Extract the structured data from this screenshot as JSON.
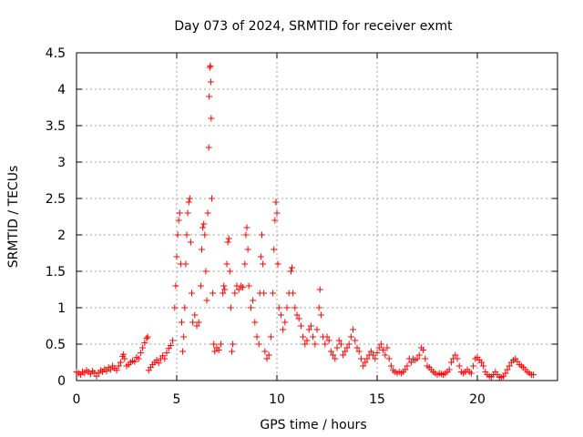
{
  "chart_data": {
    "type": "scatter",
    "title": "Day 073 of 2024, SRMTID for receiver exmt",
    "xlabel": "GPS time / hours",
    "ylabel": "SRMTID / TECUs",
    "xlim": [
      0,
      24
    ],
    "ylim": [
      0,
      4.5
    ],
    "xticks": [
      0,
      5,
      10,
      15,
      20
    ],
    "xtick_labels": [
      "0",
      "5",
      "10",
      "15",
      "20"
    ],
    "yticks": [
      0,
      0.5,
      1,
      1.5,
      2,
      2.5,
      3,
      3.5,
      4,
      4.5
    ],
    "ytick_labels": [
      "0",
      "0.5",
      "1",
      "1.5",
      "2",
      "2.5",
      "3",
      "3.5",
      "4",
      "4.5"
    ],
    "grid": true,
    "marker": "+",
    "color": "#ff0000",
    "series": [
      {
        "name": "SRMTID",
        "points": [
          [
            0.0,
            0.12
          ],
          [
            0.1,
            0.1
          ],
          [
            0.2,
            0.08
          ],
          [
            0.3,
            0.12
          ],
          [
            0.4,
            0.1
          ],
          [
            0.5,
            0.14
          ],
          [
            0.6,
            0.12
          ],
          [
            0.7,
            0.09
          ],
          [
            0.8,
            0.13
          ],
          [
            0.9,
            0.11
          ],
          [
            1.0,
            0.06
          ],
          [
            1.1,
            0.1
          ],
          [
            1.2,
            0.14
          ],
          [
            1.3,
            0.12
          ],
          [
            1.4,
            0.16
          ],
          [
            1.5,
            0.13
          ],
          [
            1.6,
            0.18
          ],
          [
            1.7,
            0.15
          ],
          [
            1.8,
            0.2
          ],
          [
            1.9,
            0.17
          ],
          [
            2.0,
            0.14
          ],
          [
            2.1,
            0.2
          ],
          [
            2.2,
            0.25
          ],
          [
            2.3,
            0.33
          ],
          [
            2.35,
            0.36
          ],
          [
            2.4,
            0.3
          ],
          [
            2.5,
            0.2
          ],
          [
            2.6,
            0.22
          ],
          [
            2.7,
            0.25
          ],
          [
            2.8,
            0.27
          ],
          [
            2.9,
            0.26
          ],
          [
            3.0,
            0.32
          ],
          [
            3.1,
            0.3
          ],
          [
            3.2,
            0.38
          ],
          [
            3.3,
            0.45
          ],
          [
            3.4,
            0.52
          ],
          [
            3.5,
            0.58
          ],
          [
            3.55,
            0.6
          ],
          [
            3.6,
            0.14
          ],
          [
            3.7,
            0.18
          ],
          [
            3.8,
            0.22
          ],
          [
            3.9,
            0.25
          ],
          [
            4.0,
            0.28
          ],
          [
            4.1,
            0.24
          ],
          [
            4.2,
            0.3
          ],
          [
            4.3,
            0.34
          ],
          [
            4.4,
            0.3
          ],
          [
            4.5,
            0.38
          ],
          [
            4.6,
            0.44
          ],
          [
            4.7,
            0.48
          ],
          [
            4.8,
            0.55
          ],
          [
            4.9,
            1.0
          ],
          [
            4.95,
            1.3
          ],
          [
            5.0,
            1.7
          ],
          [
            5.05,
            2.0
          ],
          [
            5.1,
            2.2
          ],
          [
            5.15,
            2.3
          ],
          [
            5.2,
            1.6
          ],
          [
            5.25,
            0.8
          ],
          [
            5.3,
            0.4
          ],
          [
            5.35,
            0.6
          ],
          [
            5.4,
            1.0
          ],
          [
            5.45,
            1.6
          ],
          [
            5.5,
            2.0
          ],
          [
            5.55,
            2.3
          ],
          [
            5.6,
            2.45
          ],
          [
            5.65,
            2.5
          ],
          [
            5.7,
            1.9
          ],
          [
            5.75,
            1.2
          ],
          [
            5.8,
            0.8
          ],
          [
            5.9,
            0.9
          ],
          [
            6.0,
            0.75
          ],
          [
            6.1,
            0.8
          ],
          [
            6.2,
            1.3
          ],
          [
            6.25,
            1.8
          ],
          [
            6.3,
            2.1
          ],
          [
            6.35,
            2.15
          ],
          [
            6.4,
            2.0
          ],
          [
            6.45,
            1.5
          ],
          [
            6.5,
            1.1
          ],
          [
            6.55,
            2.3
          ],
          [
            6.6,
            3.2
          ],
          [
            6.62,
            3.9
          ],
          [
            6.65,
            4.3
          ],
          [
            6.68,
            4.32
          ],
          [
            6.7,
            4.1
          ],
          [
            6.72,
            3.6
          ],
          [
            6.75,
            2.5
          ],
          [
            6.8,
            1.2
          ],
          [
            6.85,
            0.5
          ],
          [
            6.9,
            0.4
          ],
          [
            7.0,
            0.45
          ],
          [
            7.1,
            0.42
          ],
          [
            7.2,
            0.5
          ],
          [
            7.3,
            1.2
          ],
          [
            7.35,
            1.3
          ],
          [
            7.4,
            1.25
          ],
          [
            7.5,
            1.6
          ],
          [
            7.55,
            1.9
          ],
          [
            7.6,
            1.95
          ],
          [
            7.65,
            1.5
          ],
          [
            7.7,
            1.0
          ],
          [
            7.75,
            0.4
          ],
          [
            7.8,
            0.5
          ],
          [
            7.9,
            1.2
          ],
          [
            8.0,
            1.3
          ],
          [
            8.1,
            1.25
          ],
          [
            8.2,
            1.3
          ],
          [
            8.3,
            1.28
          ],
          [
            8.4,
            1.6
          ],
          [
            8.45,
            2.0
          ],
          [
            8.5,
            2.1
          ],
          [
            8.55,
            1.8
          ],
          [
            8.6,
            1.3
          ],
          [
            8.7,
            1.0
          ],
          [
            8.8,
            1.1
          ],
          [
            8.9,
            0.8
          ],
          [
            9.0,
            0.6
          ],
          [
            9.1,
            0.5
          ],
          [
            9.15,
            1.2
          ],
          [
            9.2,
            1.7
          ],
          [
            9.25,
            2.0
          ],
          [
            9.3,
            1.6
          ],
          [
            9.35,
            1.2
          ],
          [
            9.4,
            0.4
          ],
          [
            9.5,
            0.3
          ],
          [
            9.6,
            0.35
          ],
          [
            9.7,
            0.6
          ],
          [
            9.8,
            1.2
          ],
          [
            9.85,
            1.8
          ],
          [
            9.9,
            2.2
          ],
          [
            9.95,
            2.45
          ],
          [
            10.0,
            2.3
          ],
          [
            10.05,
            1.6
          ],
          [
            10.1,
            1.0
          ],
          [
            10.2,
            0.9
          ],
          [
            10.3,
            0.7
          ],
          [
            10.4,
            0.8
          ],
          [
            10.5,
            1.0
          ],
          [
            10.6,
            1.2
          ],
          [
            10.7,
            1.5
          ],
          [
            10.75,
            1.55
          ],
          [
            10.8,
            1.2
          ],
          [
            10.9,
            1.0
          ],
          [
            11.0,
            0.9
          ],
          [
            11.1,
            0.85
          ],
          [
            11.2,
            0.75
          ],
          [
            11.3,
            0.6
          ],
          [
            11.4,
            0.5
          ],
          [
            11.5,
            0.55
          ],
          [
            11.6,
            0.7
          ],
          [
            11.7,
            0.75
          ],
          [
            11.8,
            0.6
          ],
          [
            11.9,
            0.5
          ],
          [
            12.0,
            0.7
          ],
          [
            12.1,
            1.0
          ],
          [
            12.15,
            1.25
          ],
          [
            12.2,
            0.9
          ],
          [
            12.3,
            0.6
          ],
          [
            12.4,
            0.5
          ],
          [
            12.5,
            0.6
          ],
          [
            12.6,
            0.55
          ],
          [
            12.7,
            0.4
          ],
          [
            12.8,
            0.35
          ],
          [
            12.9,
            0.3
          ],
          [
            13.0,
            0.45
          ],
          [
            13.1,
            0.55
          ],
          [
            13.2,
            0.5
          ],
          [
            13.3,
            0.35
          ],
          [
            13.4,
            0.4
          ],
          [
            13.5,
            0.45
          ],
          [
            13.6,
            0.5
          ],
          [
            13.7,
            0.6
          ],
          [
            13.8,
            0.7
          ],
          [
            13.9,
            0.55
          ],
          [
            14.0,
            0.45
          ],
          [
            14.1,
            0.4
          ],
          [
            14.2,
            0.3
          ],
          [
            14.3,
            0.2
          ],
          [
            14.4,
            0.25
          ],
          [
            14.5,
            0.3
          ],
          [
            14.6,
            0.35
          ],
          [
            14.7,
            0.4
          ],
          [
            14.8,
            0.35
          ],
          [
            14.9,
            0.3
          ],
          [
            15.0,
            0.38
          ],
          [
            15.1,
            0.45
          ],
          [
            15.2,
            0.5
          ],
          [
            15.3,
            0.42
          ],
          [
            15.4,
            0.35
          ],
          [
            15.5,
            0.45
          ],
          [
            15.6,
            0.3
          ],
          [
            15.7,
            0.2
          ],
          [
            15.8,
            0.14
          ],
          [
            15.9,
            0.12
          ],
          [
            16.0,
            0.1
          ],
          [
            16.1,
            0.12
          ],
          [
            16.2,
            0.1
          ],
          [
            16.3,
            0.12
          ],
          [
            16.4,
            0.15
          ],
          [
            16.5,
            0.2
          ],
          [
            16.6,
            0.3
          ],
          [
            16.7,
            0.25
          ],
          [
            16.8,
            0.3
          ],
          [
            16.9,
            0.28
          ],
          [
            17.0,
            0.3
          ],
          [
            17.1,
            0.35
          ],
          [
            17.2,
            0.45
          ],
          [
            17.3,
            0.42
          ],
          [
            17.4,
            0.3
          ],
          [
            17.5,
            0.2
          ],
          [
            17.6,
            0.18
          ],
          [
            17.7,
            0.15
          ],
          [
            17.8,
            0.12
          ],
          [
            17.9,
            0.1
          ],
          [
            18.0,
            0.08
          ],
          [
            18.1,
            0.1
          ],
          [
            18.2,
            0.09
          ],
          [
            18.3,
            0.08
          ],
          [
            18.4,
            0.1
          ],
          [
            18.5,
            0.12
          ],
          [
            18.6,
            0.15
          ],
          [
            18.7,
            0.25
          ],
          [
            18.8,
            0.3
          ],
          [
            18.9,
            0.35
          ],
          [
            19.0,
            0.3
          ],
          [
            19.1,
            0.2
          ],
          [
            19.2,
            0.12
          ],
          [
            19.3,
            0.1
          ],
          [
            19.4,
            0.12
          ],
          [
            19.5,
            0.15
          ],
          [
            19.6,
            0.12
          ],
          [
            19.7,
            0.1
          ],
          [
            19.8,
            0.2
          ],
          [
            19.9,
            0.3
          ],
          [
            20.0,
            0.32
          ],
          [
            20.1,
            0.28
          ],
          [
            20.2,
            0.25
          ],
          [
            20.3,
            0.2
          ],
          [
            20.4,
            0.12
          ],
          [
            20.5,
            0.08
          ],
          [
            20.6,
            0.06
          ],
          [
            20.7,
            0.05
          ],
          [
            20.8,
            0.08
          ],
          [
            20.9,
            0.12
          ],
          [
            21.0,
            0.08
          ],
          [
            21.1,
            0.05
          ],
          [
            21.2,
            0.04
          ],
          [
            21.3,
            0.06
          ],
          [
            21.4,
            0.1
          ],
          [
            21.5,
            0.15
          ],
          [
            21.6,
            0.2
          ],
          [
            21.7,
            0.25
          ],
          [
            21.8,
            0.28
          ],
          [
            21.9,
            0.3
          ],
          [
            22.0,
            0.26
          ],
          [
            22.1,
            0.22
          ],
          [
            22.2,
            0.2
          ],
          [
            22.3,
            0.18
          ],
          [
            22.4,
            0.15
          ],
          [
            22.5,
            0.12
          ],
          [
            22.6,
            0.1
          ],
          [
            22.7,
            0.08
          ],
          [
            22.8,
            0.08
          ]
        ]
      }
    ]
  }
}
